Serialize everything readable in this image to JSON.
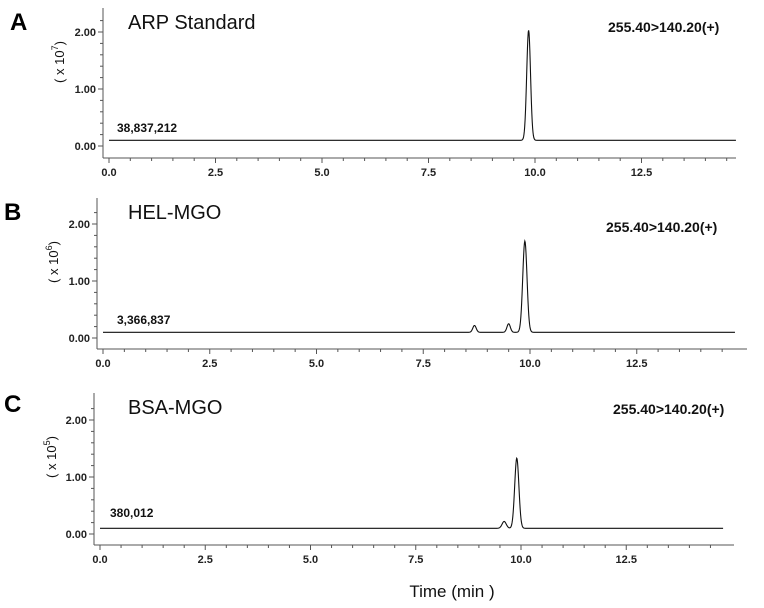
{
  "chart_data": [
    {
      "type": "line",
      "panel": "A",
      "title": "ARP Standard",
      "transition": "255.40>140.20(+)",
      "area": "38,837,212",
      "y_unit_base": "( x 10",
      "y_unit_exp": "7",
      "y_unit_close": ")",
      "y_ticks": [
        "0.00",
        "1.00",
        "2.00"
      ],
      "x_ticks": [
        "0.0",
        "2.5",
        "5.0",
        "7.5",
        "10.0",
        "12.5"
      ],
      "xlim": [
        0,
        14.8
      ],
      "ylim": [
        -0.12,
        2.22
      ],
      "baseline": 0.1,
      "peaks": [
        {
          "center": 9.85,
          "height": 1.93,
          "sigma": 0.045
        }
      ]
    },
    {
      "type": "line",
      "panel": "B",
      "title": "HEL-MGO",
      "transition": "255.40>140.20(+)",
      "area": "3,366,837",
      "y_unit_base": "( x 10",
      "y_unit_exp": "6",
      "y_unit_close": ")",
      "y_ticks": [
        "0.00",
        "1.00",
        "2.00"
      ],
      "x_ticks": [
        "0.0",
        "2.5",
        "5.0",
        "7.5",
        "10.0",
        "12.5"
      ],
      "xlim": [
        0,
        14.8
      ],
      "ylim": [
        -0.12,
        2.2
      ],
      "baseline": 0.1,
      "peaks": [
        {
          "center": 8.7,
          "height": 0.12,
          "sigma": 0.04
        },
        {
          "center": 9.5,
          "height": 0.15,
          "sigma": 0.04
        },
        {
          "center": 9.88,
          "height": 1.6,
          "sigma": 0.05
        }
      ]
    },
    {
      "type": "line",
      "panel": "C",
      "title": "BSA-MGO",
      "transition": "255.40>140.20(+)",
      "area": "380,012",
      "y_unit_base": "( x 10",
      "y_unit_exp": "5",
      "y_unit_close": ")",
      "y_ticks": [
        "0.00",
        "1.00",
        "2.00"
      ],
      "x_ticks": [
        "0.0",
        "2.5",
        "5.0",
        "7.5",
        "10.0",
        "12.5"
      ],
      "xlim": [
        0,
        14.8
      ],
      "ylim": [
        -0.12,
        2.45
      ],
      "baseline": 0.1,
      "peaks": [
        {
          "center": 9.6,
          "height": 0.12,
          "sigma": 0.05
        },
        {
          "center": 9.9,
          "height": 1.23,
          "sigma": 0.05
        }
      ]
    }
  ],
  "xlabel": "Time (min )"
}
